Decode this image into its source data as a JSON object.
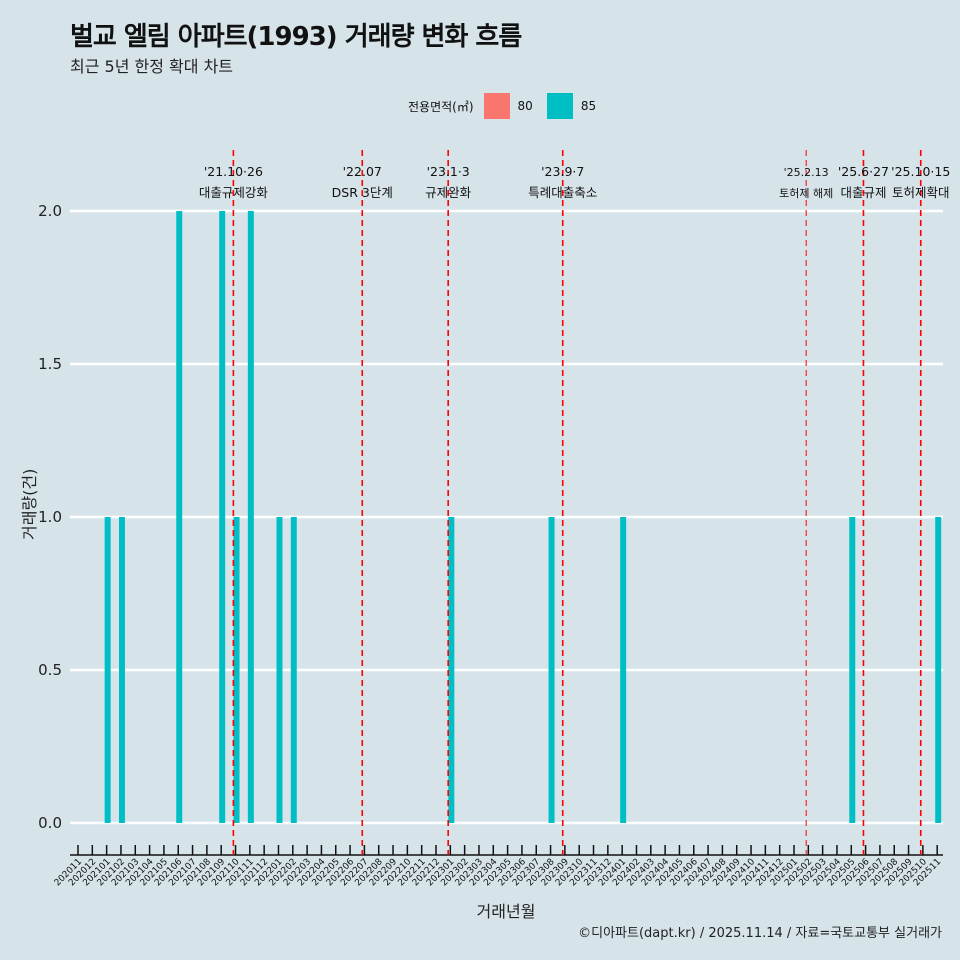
{
  "title": "벌교 엘림 아파트(1993) 거래량 변화 흐름",
  "subtitle": "최근 5년 한정 확대 차트",
  "caption": "©디아파트(dapt.kr) / 2025.11.14 / 자료=국토교통부 실거래가",
  "legend": {
    "title": "전용면적(㎡)",
    "items": [
      {
        "label": "80",
        "color": "#f8766d"
      },
      {
        "label": "85",
        "color": "#00bfc4"
      }
    ]
  },
  "chart_data": {
    "type": "bar",
    "title": "벌교 엘림 아파트(1993) 거래량 변화 흐름",
    "xlabel": "거래년월",
    "ylabel": "거래량(건)",
    "ylim": [
      0,
      2
    ],
    "yticks": [
      "0.0",
      "0.5",
      "1.0",
      "1.5",
      "2.0"
    ],
    "categories": [
      "202011",
      "202012",
      "202101",
      "202102",
      "202103",
      "202104",
      "202105",
      "202106",
      "202107",
      "202108",
      "202109",
      "202110",
      "202111",
      "202112",
      "202201",
      "202202",
      "202203",
      "202204",
      "202205",
      "202206",
      "202207",
      "202208",
      "202209",
      "202210",
      "202211",
      "202212",
      "202301",
      "202302",
      "202303",
      "202304",
      "202305",
      "202306",
      "202307",
      "202308",
      "202309",
      "202310",
      "202311",
      "202312",
      "202401",
      "202402",
      "202403",
      "202404",
      "202405",
      "202406",
      "202407",
      "202408",
      "202409",
      "202410",
      "202411",
      "202412",
      "202501",
      "202502",
      "202503",
      "202504",
      "202505",
      "202506",
      "202507",
      "202508",
      "202509",
      "202510",
      "202511"
    ],
    "series": [
      {
        "name": "85",
        "color": "#00bfc4",
        "points": [
          [
            "202101",
            1
          ],
          [
            "202102",
            1
          ],
          [
            "202106",
            2
          ],
          [
            "202109",
            2
          ],
          [
            "202110",
            1
          ],
          [
            "202111",
            2
          ],
          [
            "202201",
            1
          ],
          [
            "202202",
            1
          ],
          [
            "202301",
            1
          ],
          [
            "202308",
            1
          ],
          [
            "202401",
            1
          ],
          [
            "202505",
            1
          ],
          [
            "202511",
            1
          ]
        ]
      }
    ],
    "events": [
      {
        "month": "202110",
        "date": "'21.10·26",
        "label": "대출규제강화"
      },
      {
        "month": "202207",
        "date": "'22.07",
        "label": "DSR 3단계"
      },
      {
        "month": "202301",
        "date": "'23.1·3",
        "label": "규제완화"
      },
      {
        "month": "202309",
        "date": "'23.9·7",
        "label": "특례대출축소"
      },
      {
        "month": "202502",
        "date": "'25.2.13",
        "label": "토허제 해제",
        "minor": true
      },
      {
        "month": "202506",
        "date": "'25.6·27",
        "label": "대출규제"
      },
      {
        "month": "202510",
        "date": "'25.10·15",
        "label": "토허제확대"
      }
    ]
  }
}
